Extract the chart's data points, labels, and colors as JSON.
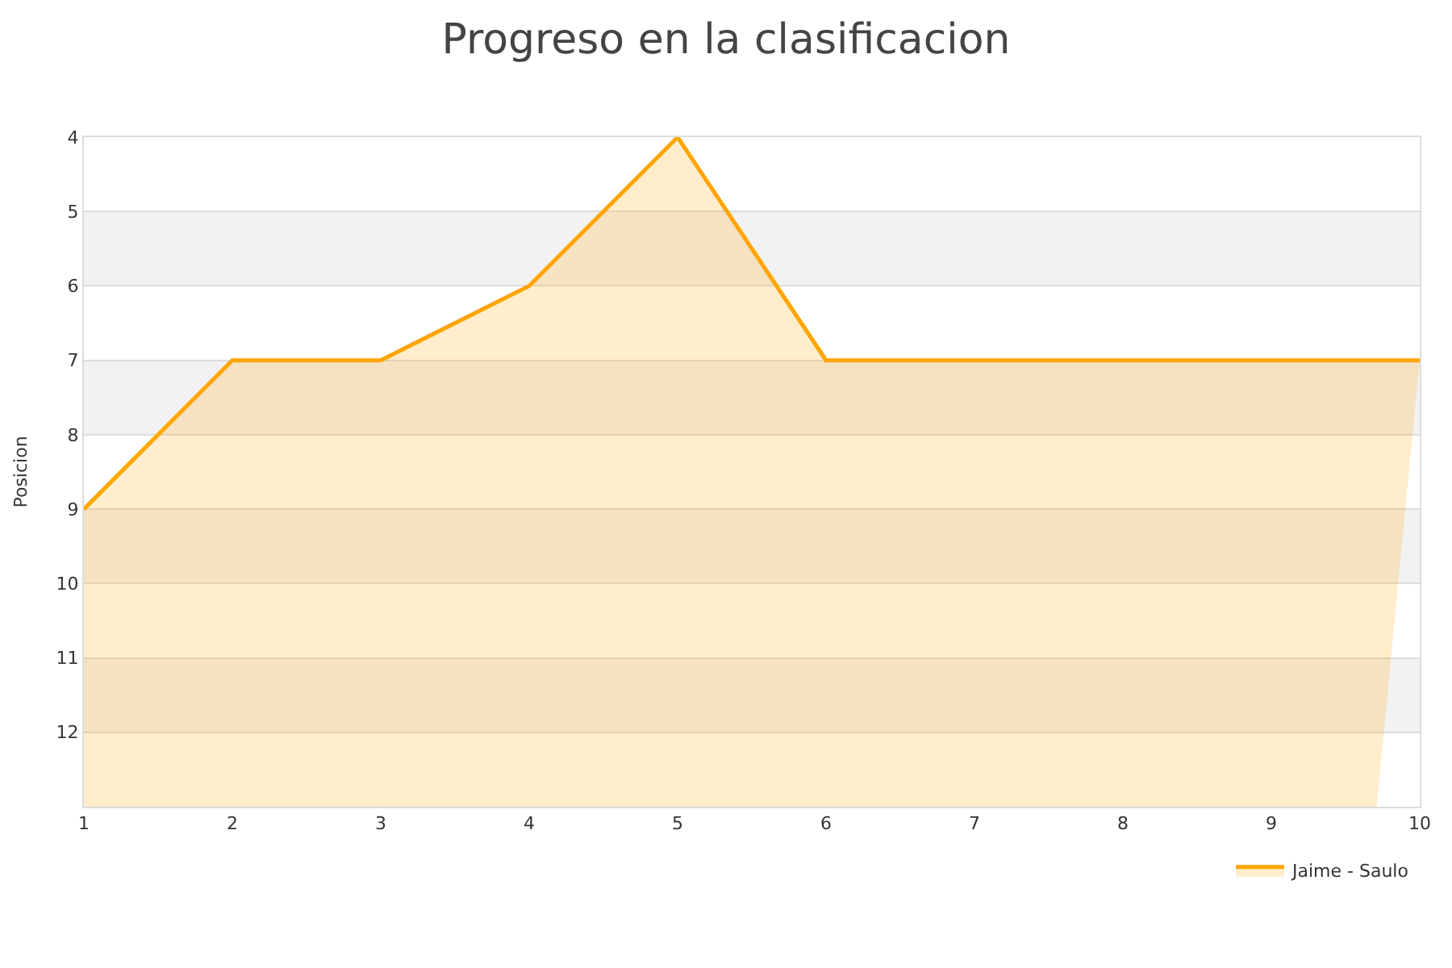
{
  "chart_data": {
    "type": "area",
    "title": "Progreso en la clasificacion",
    "ylabel": "Posicion",
    "x": [
      1,
      2,
      3,
      4,
      5,
      6,
      7,
      8,
      9,
      10
    ],
    "series": [
      {
        "name": "Jaime - Saulo",
        "color": "#ffa500",
        "values": [
          9,
          7,
          7,
          6,
          4,
          7,
          7,
          7,
          7,
          7
        ]
      }
    ],
    "xlim": [
      1,
      10
    ],
    "xticks": [
      1,
      2,
      3,
      4,
      5,
      6,
      7,
      8,
      9,
      10
    ],
    "ylim": [
      13,
      4
    ],
    "yticks": [
      4,
      5,
      6,
      7,
      8,
      9,
      10,
      11,
      12
    ],
    "bands": [
      {
        "axis": "y",
        "from": 5,
        "to": 6,
        "color": "#f2f2f2"
      },
      {
        "axis": "y",
        "from": 7,
        "to": 8,
        "color": "#f2f2f2"
      },
      {
        "axis": "y",
        "from": 9,
        "to": 10,
        "color": "#f2f2f2"
      },
      {
        "axis": "y",
        "from": 11,
        "to": 12,
        "color": "#f2f2f2"
      }
    ],
    "grid": "y",
    "legend": "bottom right",
    "marker": "none",
    "line_style": "solid"
  }
}
